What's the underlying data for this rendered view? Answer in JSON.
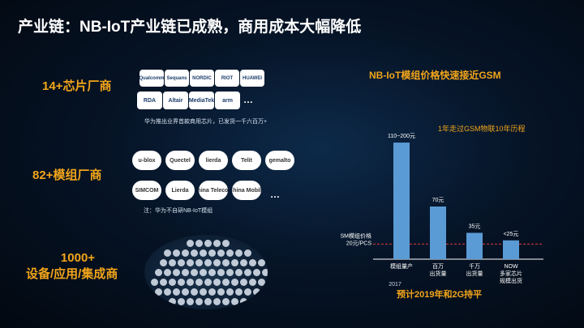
{
  "title": "产业链：NB-IoT产业链已成熟，商用成本大幅降低",
  "chip_vendors": {
    "label": "14+芯片厂商",
    "logos_row1": [
      "Qualcomm",
      "Sequans",
      "NORDIC",
      "RIOT",
      "HUAWEI"
    ],
    "logos_row2": [
      "RDA",
      "Altair",
      "MediaTek",
      "arm"
    ],
    "ellipsis": "…",
    "note": "华为推出业界首款商用芯片，已发货一千六百万+"
  },
  "module_vendors": {
    "label": "82+模组厂商",
    "logos_row1": [
      "u-blox",
      "Quectel",
      "lierda",
      "Telit",
      "gemalto"
    ],
    "logos_row2": [
      "SIMCOM",
      "Lierda",
      "China Telecom",
      "China Mobile"
    ],
    "ellipsis": "…",
    "note": "注：华为不自研NB-IoT模组"
  },
  "device_vendors": {
    "label_line1": "1000+",
    "label_line2": "设备/应用/集成商"
  },
  "chart_data": {
    "type": "bar",
    "title": "NB-IoT模组价格快速接近GSM",
    "categories": [
      "模组量产",
      "百万\n出货量",
      "千万\n出货量",
      "NOW\n多家芯片\n规模出货"
    ],
    "values": [
      155,
      70,
      35,
      25
    ],
    "value_labels": [
      "110~200元",
      "70元",
      "35元",
      "<25元"
    ],
    "range_low": 110,
    "range_high": 200,
    "x_sublabel": "2017",
    "reference_line": {
      "value": 20,
      "label": "GSM模组价格\n20元/PCS"
    },
    "annotation": "1年走过GSM物联10年历程",
    "ylim": [
      0,
      210
    ],
    "colors": {
      "bar": "#5a9bd5",
      "reference": "#e23b3b",
      "axis": "#ffffff"
    }
  },
  "footnote": "预计2019年和2G持平",
  "colors": {
    "accent": "#f2a51a",
    "background": "#061427"
  }
}
